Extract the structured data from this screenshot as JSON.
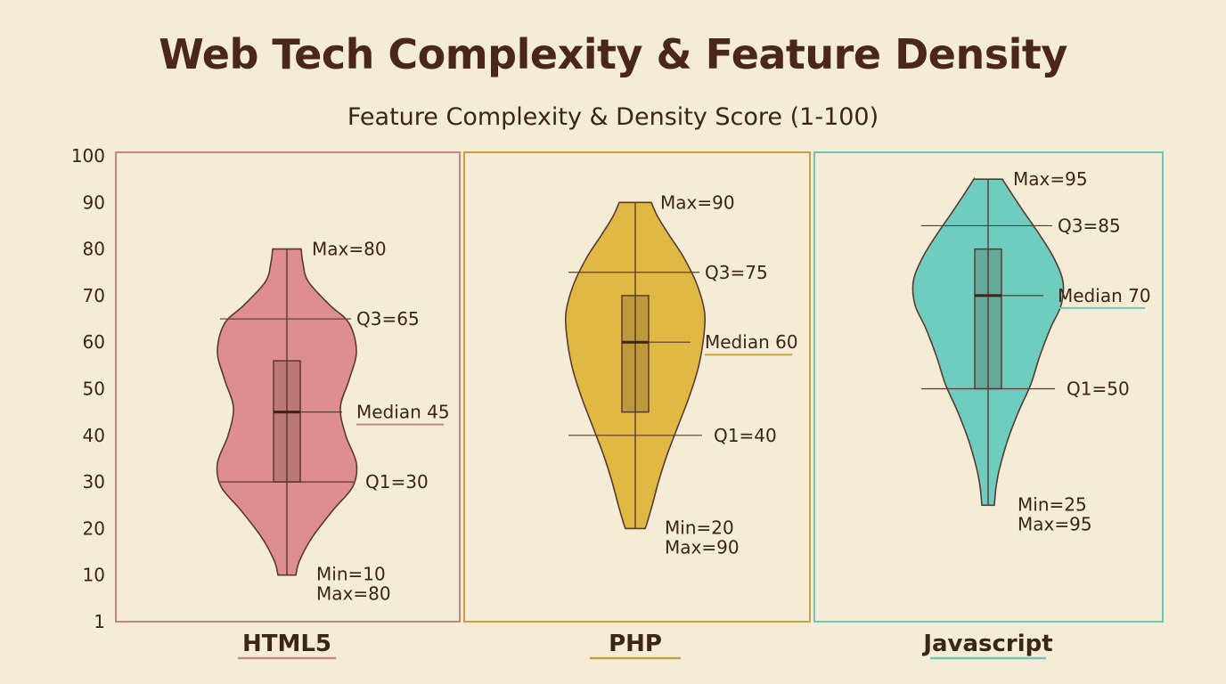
{
  "chart_data": {
    "type": "violin",
    "title": "Web Tech Complexity & Feature Density",
    "ylabel": "Feature Complexity & Density Score (1-100)",
    "yticks": [
      1,
      10,
      20,
      30,
      40,
      50,
      60,
      70,
      80,
      90,
      100
    ],
    "ylim": [
      0,
      100
    ],
    "grid": false,
    "series": [
      {
        "name": "HTML5",
        "color": "#de8e90",
        "frame_color": "#c98585",
        "stats": {
          "min": 10,
          "q1": 30,
          "median": 45,
          "q3": 65,
          "max": 80
        },
        "box_range": [
          30,
          56
        ],
        "labels": {
          "max": "Max=80",
          "q3": "Q3=65",
          "median": "Median 45",
          "q1": "Q1=30",
          "min": "Min=10",
          "min_max": "Max=80"
        }
      },
      {
        "name": "PHP",
        "color": "#dfb943",
        "frame_color": "#c9a23f",
        "stats": {
          "min": 20,
          "q1": 40,
          "median": 60,
          "q3": 75,
          "max": 90
        },
        "box_range": [
          45,
          70
        ],
        "labels": {
          "max": "Max=90",
          "q3": "Q3=75",
          "median": "Median 60",
          "q1": "Q1=40",
          "min": "Min=20",
          "min_max": "Max=90"
        }
      },
      {
        "name": "Javascript",
        "color": "#6fcdc0",
        "frame_color": "#6cc4bc",
        "stats": {
          "min": 25,
          "q1": 50,
          "median": 70,
          "q3": 85,
          "max": 95
        },
        "box_range": [
          50,
          80
        ],
        "labels": {
          "max": "Max=95",
          "q3": "Q3=85",
          "median": "Median 70",
          "q1": "Q1=50",
          "min": "Min=25",
          "min_max": "Max=95"
        }
      }
    ]
  }
}
